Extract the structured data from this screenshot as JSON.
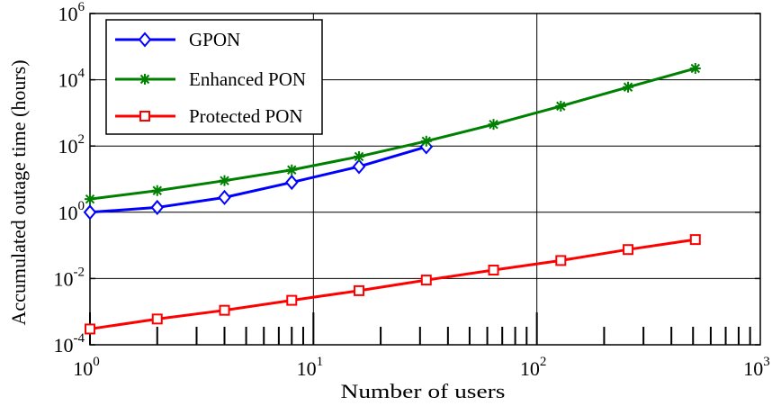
{
  "chart_data": {
    "type": "line",
    "title": "",
    "xlabel": "Number of users",
    "ylabel": "Accumulated outage time (hours)",
    "x_scale": "log",
    "y_scale": "log",
    "xlim": [
      1,
      1000
    ],
    "ylim": [
      0.0001,
      1000000
    ],
    "grid": true,
    "legend_position": "top-left",
    "x_ticks": [
      {
        "base": "10",
        "exp": "0",
        "value": 1
      },
      {
        "base": "10",
        "exp": "1",
        "value": 10
      },
      {
        "base": "10",
        "exp": "2",
        "value": 100
      },
      {
        "base": "10",
        "exp": "3",
        "value": 1000
      }
    ],
    "y_ticks": [
      {
        "base": "10",
        "exp": "-4",
        "value": 0.0001
      },
      {
        "base": "10",
        "exp": "-2",
        "value": 0.01
      },
      {
        "base": "10",
        "exp": "0",
        "value": 1
      },
      {
        "base": "10",
        "exp": "2",
        "value": 100
      },
      {
        "base": "10",
        "exp": "4",
        "value": 10000
      },
      {
        "base": "10",
        "exp": "6",
        "value": 1000000
      }
    ],
    "series": [
      {
        "name": "GPON",
        "color": "#0000ff",
        "marker": "diamond",
        "x": [
          1,
          2,
          4,
          8,
          16,
          32
        ],
        "y": [
          1.0,
          1.4,
          2.8,
          8.0,
          24,
          95
        ]
      },
      {
        "name": "Enhanced PON",
        "color": "#008000",
        "marker": "asterisk",
        "x": [
          1,
          2,
          4,
          8,
          16,
          32,
          64,
          128,
          256,
          512
        ],
        "y": [
          2.5,
          4.5,
          9,
          19,
          48,
          140,
          450,
          1600,
          6000,
          22000
        ]
      },
      {
        "name": "Protected PON",
        "color": "#ff0000",
        "marker": "square",
        "x": [
          1,
          2,
          4,
          8,
          16,
          32,
          64,
          128,
          256,
          512
        ],
        "y": [
          0.0003,
          0.0006,
          0.0011,
          0.0022,
          0.0043,
          0.009,
          0.018,
          0.035,
          0.075,
          0.15
        ]
      }
    ]
  }
}
